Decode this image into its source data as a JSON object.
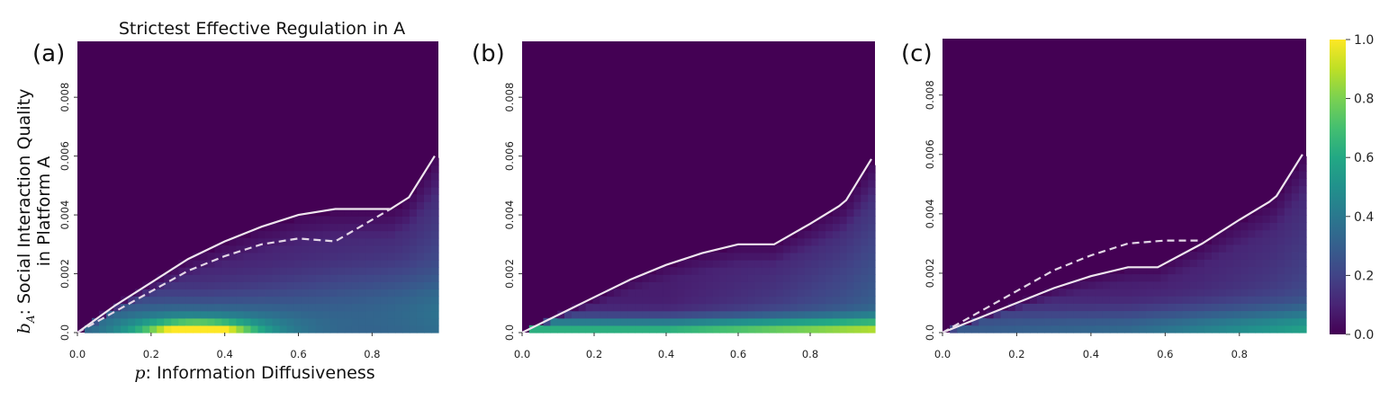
{
  "title": "Strictest Effective Regulation in A",
  "xlabel_var": "p",
  "xlabel_text": ": Information Diffusiveness",
  "ylabel_var": "b",
  "ylabel_sub": "A",
  "ylabel_line1": ": Social Interaction Quality",
  "ylabel_line2": "in Platform A",
  "colormap": "viridis",
  "colorbar": {
    "ticks": [
      "0.0",
      "0.2",
      "0.4",
      "0.6",
      "0.8",
      "1.0"
    ],
    "values": [
      0.0,
      0.2,
      0.4,
      0.6,
      0.8,
      1.0
    ]
  },
  "chart_data": [
    {
      "panel_label": "(a)",
      "type": "heatmap",
      "x_ticks": [
        "0.0",
        "0.2",
        "0.4",
        "0.6",
        "0.8"
      ],
      "y_ticks": [
        "0.0",
        "0.002",
        "0.004",
        "0.006",
        "0.008"
      ],
      "xlim": [
        0.0,
        0.98
      ],
      "ylim": [
        0.0,
        0.0099
      ],
      "solid_curve": {
        "x": [
          0.0,
          0.1,
          0.2,
          0.3,
          0.4,
          0.5,
          0.6,
          0.7,
          0.77,
          0.82,
          0.85,
          0.9,
          0.97
        ],
        "y": [
          0.0,
          0.0009,
          0.0017,
          0.0025,
          0.0031,
          0.0036,
          0.004,
          0.0042,
          0.0042,
          0.0042,
          0.0042,
          0.0046,
          0.006
        ]
      },
      "dashed_curve": {
        "x": [
          0.0,
          0.1,
          0.2,
          0.3,
          0.4,
          0.5,
          0.6,
          0.7,
          0.85
        ],
        "y": [
          0.0,
          0.0007,
          0.0014,
          0.0021,
          0.0026,
          0.003,
          0.0032,
          0.0031,
          0.0042
        ]
      }
    },
    {
      "panel_label": "(b)",
      "type": "heatmap",
      "x_ticks": [
        "0.0",
        "0.2",
        "0.4",
        "0.6",
        "0.8"
      ],
      "y_ticks": [
        "0.0",
        "0.002",
        "0.004",
        "0.006",
        "0.008"
      ],
      "xlim": [
        0.0,
        0.98
      ],
      "ylim": [
        0.0,
        0.0099
      ],
      "solid_curve": {
        "x": [
          0.0,
          0.1,
          0.2,
          0.3,
          0.4,
          0.5,
          0.6,
          0.65,
          0.7,
          0.8,
          0.88,
          0.9,
          0.97
        ],
        "y": [
          0.0,
          0.0006,
          0.0012,
          0.0018,
          0.0023,
          0.0027,
          0.003,
          0.003,
          0.003,
          0.0037,
          0.0043,
          0.0045,
          0.0059
        ]
      },
      "dashed_curve": null
    },
    {
      "panel_label": "(c)",
      "type": "heatmap",
      "x_ticks": [
        "0.0",
        "0.2",
        "0.4",
        "0.6",
        "0.8"
      ],
      "y_ticks": [
        "0.0",
        "0.002",
        "0.004",
        "0.006",
        "0.008"
      ],
      "xlim": [
        0.0,
        0.98
      ],
      "ylim": [
        0.0,
        0.0099
      ],
      "solid_curve": {
        "x": [
          0.0,
          0.1,
          0.2,
          0.3,
          0.4,
          0.5,
          0.58,
          0.7,
          0.8,
          0.88,
          0.9,
          0.97
        ],
        "y": [
          0.0,
          0.0005,
          0.001,
          0.0015,
          0.0019,
          0.0022,
          0.0022,
          0.003,
          0.0038,
          0.0044,
          0.0046,
          0.006
        ]
      },
      "dashed_curve": {
        "x": [
          0.0,
          0.1,
          0.2,
          0.3,
          0.4,
          0.5,
          0.6,
          0.7
        ],
        "y": [
          0.0,
          0.0007,
          0.0014,
          0.0021,
          0.0026,
          0.003,
          0.0031,
          0.0031
        ]
      }
    }
  ]
}
